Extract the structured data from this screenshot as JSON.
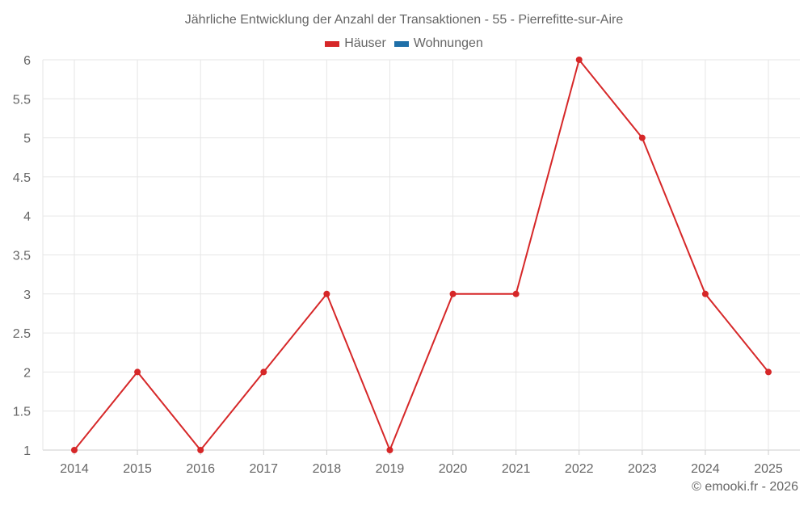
{
  "chart_data": {
    "type": "line",
    "title": "Jährliche Entwicklung der Anzahl der Transaktionen - 55 - Pierrefitte-sur-Aire",
    "categories": [
      "2014",
      "2015",
      "2016",
      "2017",
      "2018",
      "2019",
      "2020",
      "2021",
      "2022",
      "2023",
      "2024",
      "2025"
    ],
    "series": [
      {
        "name": "Häuser",
        "color": "#d62728",
        "values": [
          1,
          2,
          1,
          2,
          3,
          1,
          3,
          3,
          6,
          5,
          3,
          2
        ]
      },
      {
        "name": "Wohnungen",
        "color": "#1f6fa8",
        "values": []
      }
    ],
    "xlabel": "",
    "ylabel": "",
    "ylim": [
      1,
      6
    ],
    "yticks": [
      "1",
      "1.5",
      "2",
      "2.5",
      "3",
      "3.5",
      "4",
      "4.5",
      "5",
      "5.5",
      "6"
    ],
    "grid": true,
    "legend_position": "top"
  },
  "legend": [
    {
      "label": "Häuser",
      "color": "#d62728"
    },
    {
      "label": "Wohnungen",
      "color": "#1f6fa8"
    }
  ],
  "credit": "© emooki.fr - 2026"
}
